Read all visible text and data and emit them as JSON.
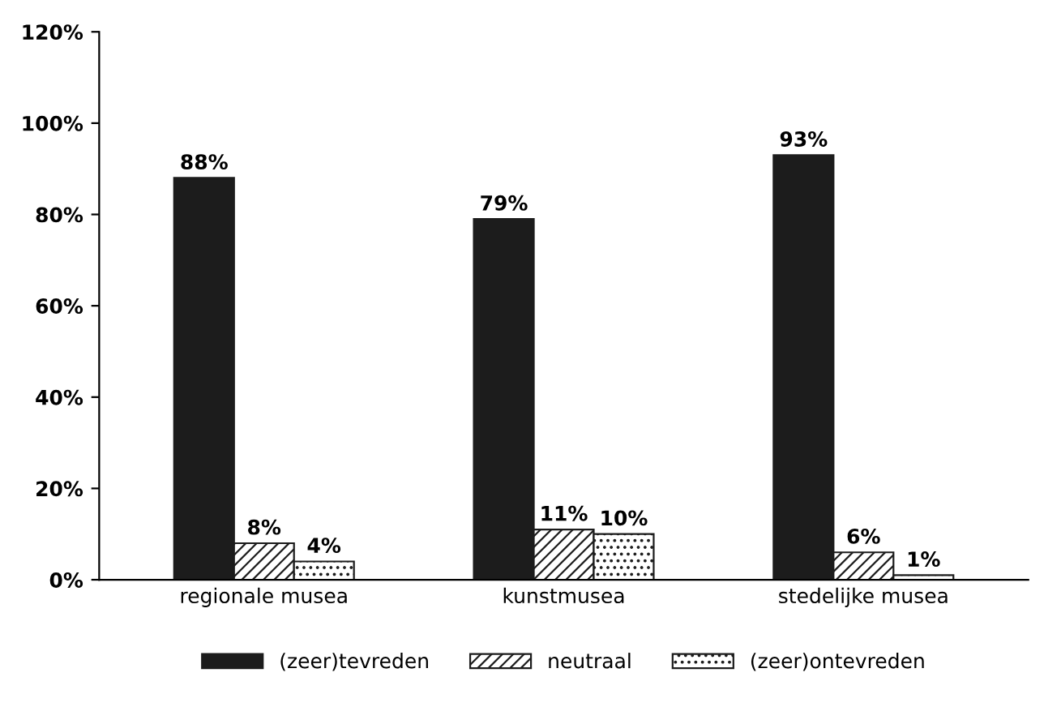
{
  "chart_data": {
    "type": "bar",
    "categories": [
      "regionale musea",
      "kunstmusea",
      "stedelijke musea"
    ],
    "series": [
      {
        "name": "(zeer)tevreden",
        "color": "#1c1c1c",
        "values": [
          88,
          79,
          93
        ],
        "value_labels": [
          "88%",
          "79%",
          "93%"
        ]
      },
      {
        "name": "neutraal",
        "color": "#1c1c1c",
        "values": [
          8,
          11,
          6
        ],
        "value_labels": [
          "8%",
          "11%",
          "6%"
        ]
      },
      {
        "name": "(zeer)ontevreden",
        "color": "#1c1c1c",
        "values": [
          4,
          10,
          1
        ],
        "value_labels": [
          "4%",
          "10%",
          "1%"
        ]
      }
    ],
    "ylim": [
      0,
      120
    ],
    "yticks": [
      {
        "value": 0,
        "label": "0%"
      },
      {
        "value": 20,
        "label": "20%"
      },
      {
        "value": 40,
        "label": "40%"
      },
      {
        "value": 60,
        "label": "60%"
      },
      {
        "value": 80,
        "label": "80%"
      },
      {
        "value": 100,
        "label": "100%"
      },
      {
        "value": 120,
        "label": "120%"
      }
    ],
    "grid": false,
    "legend": "bottom"
  }
}
